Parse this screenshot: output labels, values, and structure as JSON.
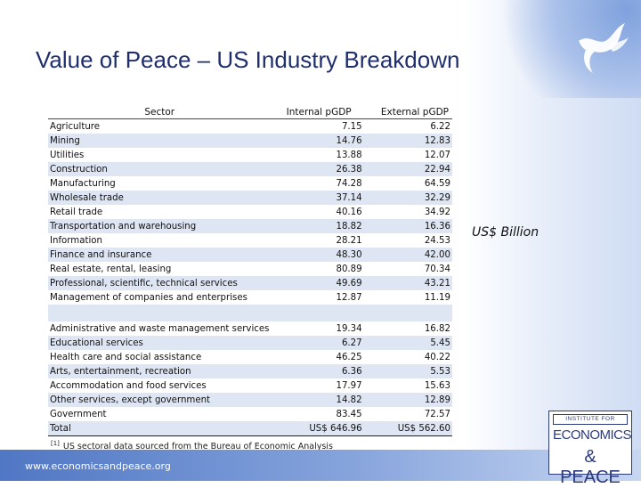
{
  "slide": {
    "title": "Value of Peace – US Industry Breakdown",
    "unit_label": "US$ Billion",
    "footnote_marker": "[1]",
    "footnote": "US sectoral data sourced from the Bureau of Economic Analysis",
    "footer_url": "www.economicsandpeace.org"
  },
  "logo": {
    "line1": "INSTITUTE FOR",
    "line2": "ECONOMICS",
    "line3": "& PEACE"
  },
  "table": {
    "headers": [
      "Sector",
      "Internal pGDP",
      "External pGDP"
    ],
    "rows": [
      {
        "sector": "Agriculture",
        "internal": "7.15",
        "external": "6.22"
      },
      {
        "sector": "Mining",
        "internal": "14.76",
        "external": "12.83"
      },
      {
        "sector": "Utilities",
        "internal": "13.88",
        "external": "12.07"
      },
      {
        "sector": "Construction",
        "internal": "26.38",
        "external": "22.94"
      },
      {
        "sector": "Manufacturing",
        "internal": "74.28",
        "external": "64.59"
      },
      {
        "sector": "Wholesale trade",
        "internal": "37.14",
        "external": "32.29"
      },
      {
        "sector": "Retail trade",
        "internal": "40.16",
        "external": "34.92"
      },
      {
        "sector": "Transportation and warehousing",
        "internal": "18.82",
        "external": "16.36"
      },
      {
        "sector": "Information",
        "internal": "28.21",
        "external": "24.53"
      },
      {
        "sector": "Finance and insurance",
        "internal": "48.30",
        "external": "42.00"
      },
      {
        "sector": "Real estate, rental, leasing",
        "internal": "80.89",
        "external": "70.34"
      },
      {
        "sector": "Professional, scientific, technical services",
        "internal": "49.69",
        "external": "43.21"
      },
      {
        "sector": "Management of companies and enterprises",
        "internal": "12.87",
        "external": "11.19"
      },
      {
        "sector": "Administrative and waste management services",
        "internal": "19.34",
        "external": "16.82"
      },
      {
        "sector": "Educational services",
        "internal": "6.27",
        "external": "5.45"
      },
      {
        "sector": "Health care and social assistance",
        "internal": "46.25",
        "external": "40.22"
      },
      {
        "sector": "Arts, entertainment, recreation",
        "internal": "6.36",
        "external": "5.53"
      },
      {
        "sector": "Accommodation and food services",
        "internal": "17.97",
        "external": "15.63"
      },
      {
        "sector": "Other services, except government",
        "internal": "14.82",
        "external": "12.89"
      },
      {
        "sector": "Government",
        "internal": "83.45",
        "external": "72.57"
      }
    ],
    "total": {
      "sector": "Total",
      "internal": "US$ 646.96",
      "external": "US$ 562.60"
    }
  }
}
